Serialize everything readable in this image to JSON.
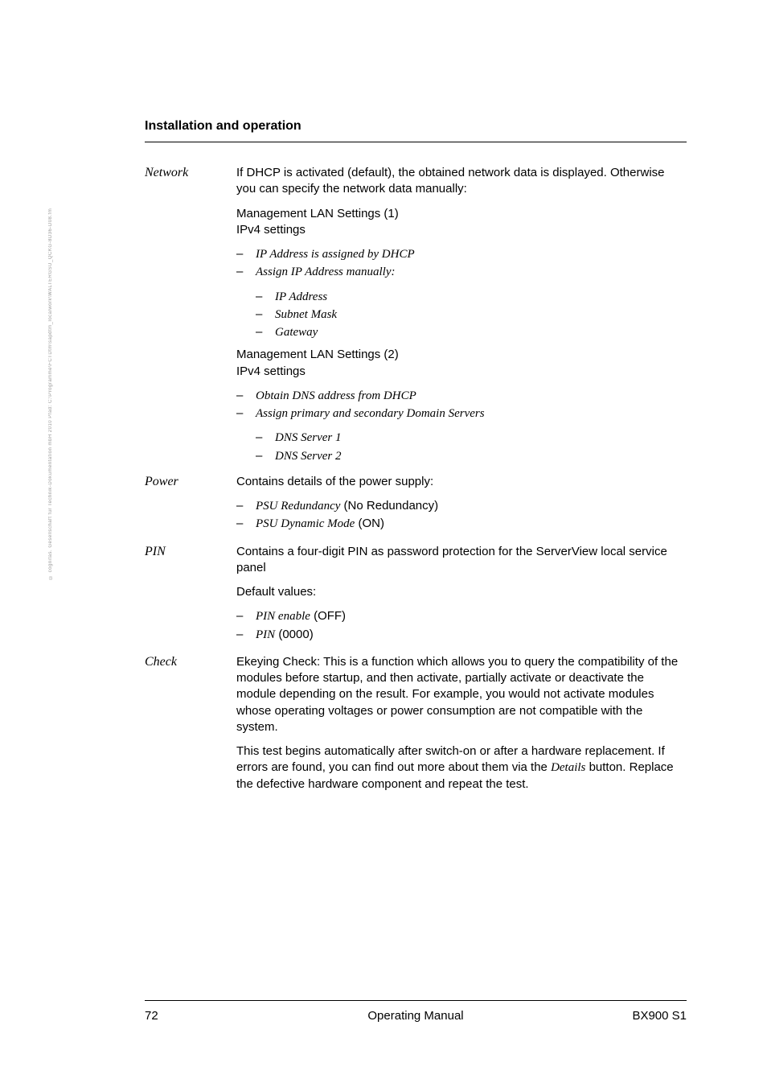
{
  "sidebar_copyright": "© cognitas. Gesellschaft für Technik-Dokumentation mbH 2010  Pfad: C:\\Programme\\FCTDtm\\sapdtm_localwork\\WALTERGSU_QCKG-8D36-D08.fm",
  "header": "Installation and operation",
  "network": {
    "label": "Network",
    "intro": "If DHCP is activated (default), the obtained network data is displayed. Otherwise you can specify the network data manually:",
    "mgmt1": "Management LAN Settings (1)",
    "ipv4a": "IPv4 settings",
    "b1": "IP Address is assigned by DHCP",
    "b2": "Assign IP Address manually:",
    "b2_1": "IP Address",
    "b2_2": "Subnet Mask",
    "b2_3": "Gateway",
    "mgmt2": "Management LAN Settings (2)",
    "ipv4b": "IPv4 settings",
    "b3": "Obtain DNS address from DHCP",
    "b4": "Assign primary and secondary Domain Servers",
    "b4_1": "DNS Server 1",
    "b4_2": "DNS Server 2"
  },
  "power": {
    "label": "Power",
    "intro": "Contains details of the power supply:",
    "b1": "PSU Redundancy",
    "b1_suffix": " (No Redundancy)",
    "b2": "PSU Dynamic Mode",
    "b2_suffix": " (ON)"
  },
  "pin": {
    "label": "PIN",
    "intro": "Contains a four-digit PIN as password protection for the ServerView local service panel",
    "default": "Default values:",
    "b1": "PIN enable",
    "b1_suffix": " (OFF)",
    "b2": "PIN",
    "b2_suffix": " (0000)"
  },
  "check": {
    "label": "Check",
    "p1": "Ekeying Check: This is a function which allows you to query the compatibility of the modules before startup, and then activate, partially activate or deactivate the module depending on the result. For example, you would not activate modules whose operating voltages or power consumption are not compatible with the system.",
    "p2_pre": "This test begins automatically after switch-on or after a hardware replacement. If errors are found, you can find out more about them via the ",
    "p2_em": "Details",
    "p2_post": " button. Replace the defective hardware component and repeat the test."
  },
  "footer": {
    "page": "72",
    "center": "Operating Manual",
    "right": "BX900 S1"
  }
}
